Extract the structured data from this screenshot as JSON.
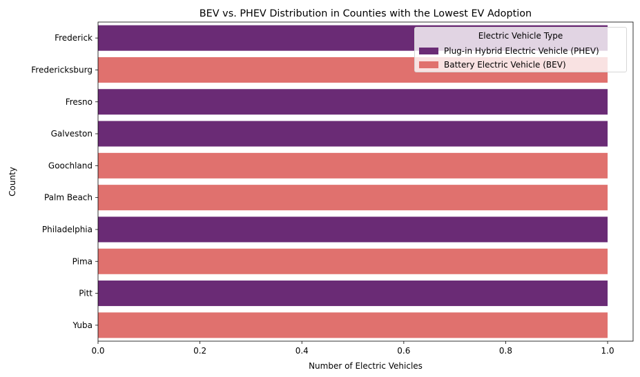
{
  "chart_data": {
    "type": "bar",
    "orientation": "horizontal",
    "title": "BEV vs. PHEV Distribution in Counties with the Lowest EV Adoption",
    "xlabel": "Number of Electric Vehicles",
    "ylabel": "County",
    "xlim": [
      0,
      1.05
    ],
    "xticks": [
      "0.0",
      "0.2",
      "0.4",
      "0.6",
      "0.8",
      "1.0"
    ],
    "grid": false,
    "legend_placement": "top-right",
    "legend_title": "Electric Vehicle Type",
    "series": [
      {
        "name": "Plug-in Hybrid Electric Vehicle (PHEV)",
        "color": "#6a2b75"
      },
      {
        "name": "Battery Electric Vehicle (BEV)",
        "color": "#e0716e"
      }
    ],
    "categories": [
      "Frederick",
      "Fredericksburg",
      "Fresno",
      "Galveston",
      "Goochland",
      "Palm Beach",
      "Philadelphia",
      "Pima",
      "Pitt",
      "Yuba"
    ],
    "bars": [
      {
        "county": "Frederick",
        "type": "Plug-in Hybrid Electric Vehicle (PHEV)",
        "value": 1
      },
      {
        "county": "Fredericksburg",
        "type": "Battery Electric Vehicle (BEV)",
        "value": 1
      },
      {
        "county": "Fresno",
        "type": "Plug-in Hybrid Electric Vehicle (PHEV)",
        "value": 1
      },
      {
        "county": "Galveston",
        "type": "Plug-in Hybrid Electric Vehicle (PHEV)",
        "value": 1
      },
      {
        "county": "Goochland",
        "type": "Battery Electric Vehicle (BEV)",
        "value": 1
      },
      {
        "county": "Palm Beach",
        "type": "Battery Electric Vehicle (BEV)",
        "value": 1
      },
      {
        "county": "Philadelphia",
        "type": "Plug-in Hybrid Electric Vehicle (PHEV)",
        "value": 1
      },
      {
        "county": "Pima",
        "type": "Battery Electric Vehicle (BEV)",
        "value": 1
      },
      {
        "county": "Pitt",
        "type": "Plug-in Hybrid Electric Vehicle (PHEV)",
        "value": 1
      },
      {
        "county": "Yuba",
        "type": "Battery Electric Vehicle (BEV)",
        "value": 1
      }
    ]
  }
}
